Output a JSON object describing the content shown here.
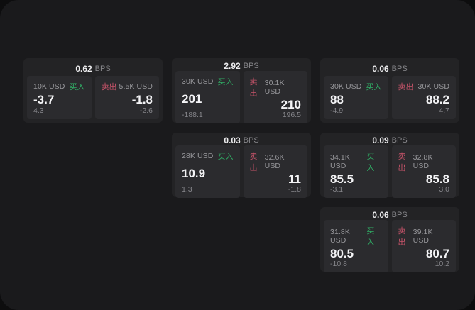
{
  "units": {
    "bps": "BPS"
  },
  "labels": {
    "buy": "买入",
    "sell": "卖出"
  },
  "colors": {
    "page_background": "#1a1a1c",
    "outer_background": "#0d0d0e",
    "card_background": "#232325",
    "panel_background": "#2b2b2e",
    "buy_green": "#30af66",
    "sell_red": "#c9546a",
    "primary_text": "#f4f4f6",
    "muted_text": "#97979b"
  },
  "cards": [
    {
      "bps": "0.62",
      "buy": {
        "amount": "10K USD",
        "price": "-3.7",
        "delta": "4.3"
      },
      "sell": {
        "amount": "5.5K USD",
        "price": "-1.8",
        "delta": "-2.6"
      }
    },
    {
      "bps": "2.92",
      "buy": {
        "amount": "30K USD",
        "price": "201",
        "delta": "-188.1"
      },
      "sell": {
        "amount": "30.1K USD",
        "price": "210",
        "delta": "196.5"
      }
    },
    {
      "bps": "0.06",
      "buy": {
        "amount": "30K USD",
        "price": "88",
        "delta": "-4.9"
      },
      "sell": {
        "amount": "30K USD",
        "price": "88.2",
        "delta": "4.7"
      }
    },
    {
      "bps": "0.03",
      "buy": {
        "amount": "28K USD",
        "price": "10.9",
        "delta": "1.3"
      },
      "sell": {
        "amount": "32.6K USD",
        "price": "11",
        "delta": "-1.8"
      }
    },
    {
      "bps": "0.09",
      "buy": {
        "amount": "34.1K USD",
        "price": "85.5",
        "delta": "-3.1"
      },
      "sell": {
        "amount": "32.8K USD",
        "price": "85.8",
        "delta": "3.0"
      }
    },
    {
      "bps": "0.06",
      "buy": {
        "amount": "31.8K USD",
        "price": "80.5",
        "delta": "-10.8"
      },
      "sell": {
        "amount": "39.1K USD",
        "price": "80.7",
        "delta": "10.2"
      }
    }
  ]
}
